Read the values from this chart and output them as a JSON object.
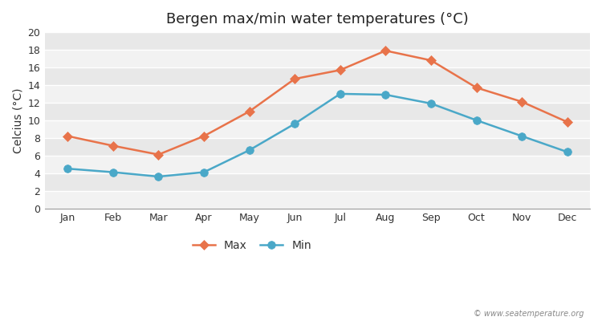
{
  "title": "Bergen max/min water temperatures (°C)",
  "ylabel": "Celcius (°C)",
  "months": [
    "Jan",
    "Feb",
    "Mar",
    "Apr",
    "May",
    "Jun",
    "Jul",
    "Aug",
    "Sep",
    "Oct",
    "Nov",
    "Dec"
  ],
  "max_values": [
    8.2,
    7.1,
    6.1,
    8.2,
    11.0,
    14.7,
    15.7,
    17.9,
    16.8,
    13.7,
    12.1,
    9.8
  ],
  "min_values": [
    4.5,
    4.1,
    3.6,
    4.1,
    6.6,
    9.6,
    13.0,
    12.9,
    11.9,
    10.0,
    8.2,
    6.4
  ],
  "max_color": "#e8734a",
  "min_color": "#4aa8c8",
  "ylim": [
    0,
    20
  ],
  "yticks": [
    0,
    2,
    4,
    6,
    8,
    10,
    12,
    14,
    16,
    18,
    20
  ],
  "figure_bg": "#ffffff",
  "plot_bg_light": "#ebebeb",
  "plot_bg_white": "#f7f7f7",
  "grid_color": "#ffffff",
  "title_fontsize": 13,
  "axis_label_fontsize": 10,
  "tick_fontsize": 9,
  "legend_fontsize": 10,
  "watermark": "© www.seatemperature.org",
  "marker_size": 6,
  "linewidth": 1.8
}
